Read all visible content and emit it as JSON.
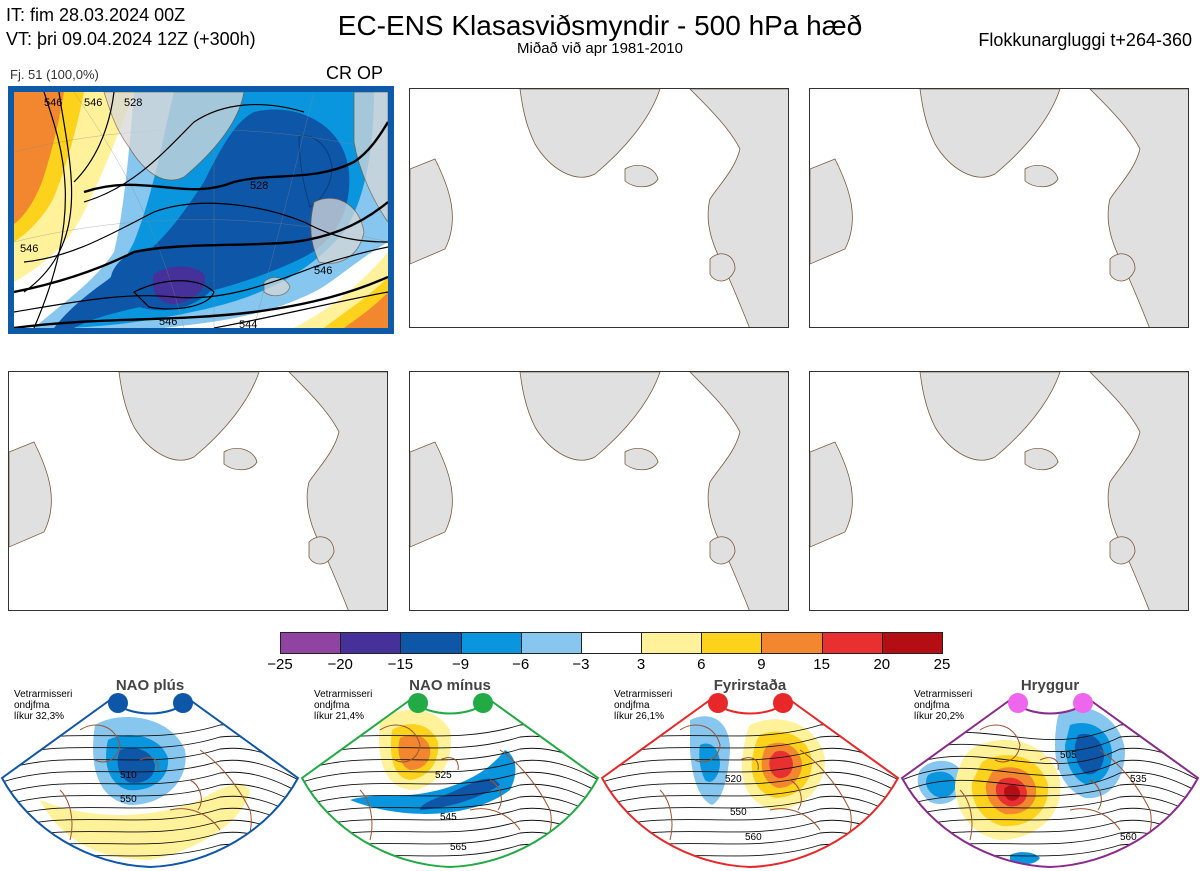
{
  "header": {
    "it_line": "IT: fim 28.03.2024 00Z",
    "vt_line": "VT: þri 09.04.2024 12Z  (+300h)",
    "title": "EC-ENS Klasasviðsmyndir - 500 hPa hæð",
    "subtitle": "Miðað við apr 1981-2010",
    "window": "Flokkunargluggi t+264-360"
  },
  "panel1": {
    "label": "Fj. 51 (100,0%)",
    "tag": "CR OP",
    "contours": [
      "546",
      "528",
      "546",
      "546",
      "544",
      "528",
      "546",
      "546"
    ]
  },
  "colors": {
    "land": "#e0e0e0",
    "coast": "#7a5a3a",
    "selected_border": "#0d5aa8"
  },
  "chart_data": {
    "type": "heatmap",
    "title": "EC-ENS Klasasviðsmyndir - 500 hPa hæð",
    "colorbar": {
      "ticks": [
        "−25",
        "−20",
        "−15",
        "−9",
        "−6",
        "−3",
        "3",
        "6",
        "9",
        "15",
        "20",
        "25"
      ],
      "colors": [
        "#8e44a0",
        "#46309a",
        "#0d56a8",
        "#0a96df",
        "#86c6ef",
        "#ffffff",
        "#fff29a",
        "#fdd21c",
        "#f3872f",
        "#e83030",
        "#b40e14"
      ]
    },
    "regimes": [
      {
        "name": "NAO plús",
        "info": [
          "Vetrarmisseri",
          "ondjfma",
          "líkur 32,3%"
        ],
        "dot_color": "#0d56a8",
        "frame": "#0d56a8",
        "contours": [
          "510",
          "550"
        ]
      },
      {
        "name": "NAO mínus",
        "info": [
          "Vetrarmisseri",
          "ondjfma",
          "líkur 21,4%"
        ],
        "dot_color": "#22aa44",
        "frame": "#22aa44",
        "contours": [
          "525",
          "545",
          "565"
        ]
      },
      {
        "name": "Fyrirstaða",
        "info": [
          "Vetrarmisseri",
          "ondjfma",
          "líkur 26,1%"
        ],
        "dot_color": "#e82828",
        "frame": "#e82828",
        "contours": [
          "520",
          "550",
          "560"
        ]
      },
      {
        "name": "Hryggur",
        "info": [
          "Vetrarmisseri",
          "ondjfma",
          "líkur 20,2%"
        ],
        "dot_color": "#ee66ee",
        "frame": "#8a2a8a",
        "contours": [
          "505",
          "535",
          "560"
        ]
      }
    ]
  }
}
